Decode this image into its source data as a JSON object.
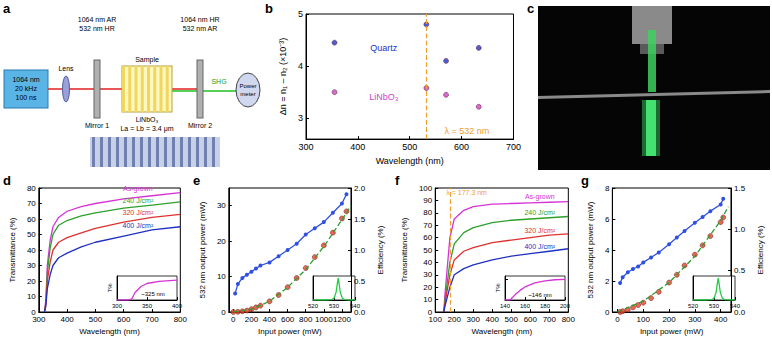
{
  "diagram": {
    "panel_label": "a",
    "laser": [
      "1064 nm",
      "20 kHz",
      "100 ns"
    ],
    "lens": "Lens",
    "mirror1": {
      "coating": [
        "1064 nm AR",
        "532 nm HR"
      ],
      "label": "Mirror 1"
    },
    "sample": {
      "label": "Sample",
      "material": "LiNbO₃",
      "period": "La = Lb = 3.4 μm"
    },
    "mirror2": {
      "coating": [
        "1064 nm HR",
        "532 nm AR"
      ],
      "label": "Mirror 2"
    },
    "beam": "SHG",
    "detector": "Power meter"
  },
  "photo": {
    "panel_label": "c"
  },
  "chart_data": [
    {
      "panel_label": "b",
      "type": "scatter",
      "grid": false,
      "x_label": "Wavelength (nm)",
      "y_label": "Δn = n₁ – n₂ (×10⁻³)",
      "xlim": [
        300,
        700
      ],
      "xticks": [
        300,
        400,
        500,
        600,
        700
      ],
      "ylim": [
        2.6,
        5
      ],
      "yticks": [
        3,
        4,
        5
      ],
      "series": [
        {
          "color": "#2233cc",
          "marker": "circle",
          "x": [
            355,
            532,
            570,
            633
          ],
          "values": [
            4.45,
            4.8,
            4.1,
            4.35
          ]
        },
        {
          "color": "#cc44cc",
          "marker": "circle",
          "x": [
            355,
            532,
            570,
            633
          ],
          "values": [
            3.5,
            3.58,
            3.45,
            3.22
          ]
        }
      ],
      "vlines": [
        {
          "x": 532,
          "color": "#f0a030"
        }
      ],
      "annotations": [
        {
          "text": "Quartz",
          "x": 450,
          "y": 4.35,
          "color": "#2233cc"
        },
        {
          "text": "LiNbO₃",
          "x": 450,
          "y": 3.4,
          "color": "#cc44cc"
        },
        {
          "text": "λ = 532 nm",
          "x": 610,
          "y": 2.75,
          "color": "#f0a030"
        }
      ]
    },
    {
      "panel_label": "d",
      "type": "line",
      "grid": false,
      "x_label": "Wavelength (nm)",
      "y_label": "Transmittance (%)",
      "xlim": [
        300,
        800
      ],
      "xticks": [
        300,
        400,
        500,
        600,
        700,
        800
      ],
      "ylim": [
        0,
        80
      ],
      "yticks": [
        0,
        10,
        20,
        30,
        40,
        50,
        60,
        70,
        80
      ],
      "series": [
        {
          "color": "#d633d6",
          "marker": "none",
          "line_style": "solid",
          "x": [
            320,
            325,
            330,
            340,
            350,
            370,
            400,
            450,
            500,
            600,
            700,
            800
          ],
          "values": [
            0,
            8,
            30,
            46,
            55,
            61,
            65,
            68,
            70,
            73,
            75,
            77
          ]
        },
        {
          "color": "#2ca02c",
          "marker": "none",
          "line_style": "solid",
          "x": [
            320,
            325,
            330,
            340,
            350,
            370,
            400,
            450,
            500,
            600,
            700,
            800
          ],
          "values": [
            0,
            6,
            25,
            41,
            50,
            56,
            59,
            62,
            64,
            67,
            69,
            71
          ]
        },
        {
          "color": "#e03030",
          "marker": "none",
          "line_style": "solid",
          "x": [
            320,
            325,
            330,
            340,
            350,
            370,
            400,
            450,
            500,
            600,
            700,
            800
          ],
          "values": [
            0,
            5,
            20,
            32,
            40,
            45,
            48,
            51,
            54,
            58,
            61,
            63
          ]
        },
        {
          "color": "#2030c0",
          "marker": "none",
          "line_style": "solid",
          "x": [
            320,
            325,
            330,
            340,
            350,
            370,
            400,
            450,
            500,
            600,
            700,
            800
          ],
          "values": [
            0,
            4,
            15,
            24,
            30,
            35,
            38,
            42,
            45,
            49,
            53,
            55
          ]
        }
      ],
      "annotations": [
        {
          "text": "As-grown",
          "x": 650,
          "y": 80,
          "color": "#d633d6"
        },
        {
          "text": "240 J/cm²",
          "x": 650,
          "y": 72,
          "color": "#2ca02c"
        },
        {
          "text": "320 J/cm²",
          "x": 650,
          "y": 64,
          "color": "#e03030"
        },
        {
          "text": "400 J/cm²",
          "x": 650,
          "y": 56,
          "color": "#2030c0"
        }
      ],
      "inset": {
        "type": "line",
        "y_label": "T%",
        "tick_labels": "x",
        "xlim": [
          300,
          400
        ],
        "xticks": [
          300,
          350,
          400
        ],
        "ylim": [
          0,
          80
        ],
        "yticks": [],
        "series": [
          {
            "color": "#d633d6",
            "marker": "none",
            "line_style": "solid",
            "x": [
              300,
              320,
              325,
              330,
              340,
              350,
              370,
              400
            ],
            "values": [
              0,
              0,
              5,
              25,
              45,
              55,
              62,
              66
            ]
          }
        ],
        "annotations": [
          {
            "text": "~325 nm",
            "x": 360,
            "y": 20,
            "color": "#000000"
          }
        ]
      }
    },
    {
      "panel_label": "e",
      "type": "scatter",
      "grid": false,
      "x_label": "Input power (mW)",
      "y_label": "532 nm output power (mW)",
      "y2_label": "Efficiency (%)",
      "xlim": [
        -50,
        1300
      ],
      "xticks": [
        0,
        200,
        400,
        600,
        800,
        1000,
        1200
      ],
      "ylim": [
        0,
        35
      ],
      "yticks": [
        0,
        10,
        20,
        30
      ],
      "y2lim": [
        0,
        2
      ],
      "y2ticks": [
        {
          "value": 0,
          "label": "0.0"
        },
        0.5,
        {
          "value": 1,
          "label": "1.0"
        },
        1.5,
        {
          "value": 2,
          "label": "2.0"
        }
      ],
      "series": [
        {
          "type": "line",
          "color": "#2e9e2e",
          "marker": "none",
          "line_style": "dashed",
          "x": [
            0,
            200,
            400,
            600,
            800,
            1000,
            1200,
            1300
          ],
          "values": [
            0,
            0.8,
            3,
            7,
            12,
            18.5,
            26,
            30
          ]
        },
        {
          "type": "scatter",
          "color": "#e8402a",
          "marker": "circle",
          "x": [
            0,
            50,
            100,
            150,
            200,
            250,
            300,
            400,
            500,
            600,
            700,
            800,
            900,
            1000,
            1100,
            1200,
            1250
          ],
          "values": [
            0,
            0.05,
            0.2,
            0.4,
            0.8,
            1.3,
            1.8,
            3,
            4.8,
            7,
            9.6,
            12.4,
            15.5,
            18.8,
            22.4,
            26.4,
            28.4
          ]
        },
        {
          "type": "line",
          "axis": "y2",
          "color": "#3050e0",
          "marker": "circle",
          "line_style": "solid",
          "x": [
            20,
            50,
            100,
            150,
            200,
            250,
            300,
            400,
            500,
            600,
            700,
            800,
            900,
            1000,
            1100,
            1200,
            1250
          ],
          "values": [
            0.3,
            0.45,
            0.55,
            0.6,
            0.65,
            0.7,
            0.75,
            0.8,
            0.9,
            1,
            1.1,
            1.25,
            1.35,
            1.45,
            1.6,
            1.75,
            1.9
          ]
        }
      ],
      "inset": {
        "type": "line",
        "tick_labels": "x",
        "xlim": [
          520,
          540
        ],
        "xticks": [
          520,
          530,
          540
        ],
        "ylim": [
          0,
          1.1
        ],
        "yticks": [],
        "series": [
          {
            "color": "#22cc44",
            "marker": "none",
            "line_style": "solid",
            "x": [
              520,
              526,
              529,
              530,
              531,
              531.5,
              532,
              532.5,
              533,
              534,
              535,
              538,
              540
            ],
            "values": [
              0,
              0,
              0.02,
              0.08,
              0.35,
              0.7,
              1,
              0.7,
              0.35,
              0.08,
              0.02,
              0,
              0
            ]
          }
        ]
      }
    },
    {
      "panel_label": "f",
      "type": "line",
      "grid": false,
      "x_label": "Wavelength (nm)",
      "y_label": "Transmittance (%)",
      "xlim": [
        100,
        800
      ],
      "xticks": [
        100,
        200,
        300,
        400,
        500,
        600,
        700,
        800
      ],
      "ylim": [
        0,
        100
      ],
      "yticks": [
        0,
        10,
        20,
        30,
        40,
        50,
        60,
        70,
        80,
        90,
        100
      ],
      "series": [
        {
          "color": "#d633d6",
          "marker": "none",
          "line_style": "solid",
          "x": [
            145,
            150,
            160,
            177,
            200,
            250,
            300,
            400,
            500,
            600,
            700,
            800
          ],
          "values": [
            0,
            12,
            30,
            60,
            75,
            82,
            85,
            87,
            87.5,
            88,
            88.5,
            89
          ]
        },
        {
          "color": "#2ca02c",
          "marker": "none",
          "line_style": "solid",
          "x": [
            145,
            150,
            160,
            177,
            200,
            250,
            300,
            400,
            500,
            600,
            700,
            800
          ],
          "values": [
            0,
            8,
            20,
            40,
            55,
            64,
            68,
            72,
            74,
            75,
            76,
            77
          ]
        },
        {
          "color": "#e03030",
          "marker": "none",
          "line_style": "solid",
          "x": [
            145,
            150,
            160,
            177,
            200,
            250,
            300,
            400,
            500,
            600,
            700,
            800
          ],
          "values": [
            0,
            6,
            15,
            30,
            42,
            49,
            52,
            56,
            58,
            60,
            62,
            63
          ]
        },
        {
          "color": "#2030c0",
          "marker": "none",
          "line_style": "solid",
          "x": [
            145,
            150,
            160,
            177,
            200,
            250,
            300,
            400,
            500,
            600,
            700,
            800
          ],
          "values": [
            0,
            4,
            10,
            20,
            30,
            35,
            38,
            42,
            45,
            47,
            49,
            51
          ]
        }
      ],
      "vlines": [
        {
          "x": 177.3,
          "color": "#f0a030"
        }
      ],
      "annotations": [
        {
          "text": "λ = 177.3 nm",
          "x": 265,
          "y": 96,
          "color": "#f0a030"
        },
        {
          "text": "As-grown",
          "x": 650,
          "y": 93,
          "color": "#d633d6"
        },
        {
          "text": "240 J/cm²",
          "x": 650,
          "y": 80,
          "color": "#2ca02c"
        },
        {
          "text": "320 J/cm²",
          "x": 650,
          "y": 66,
          "color": "#e03030"
        },
        {
          "text": "400 J/cm²",
          "x": 650,
          "y": 53,
          "color": "#2030c0"
        }
      ],
      "inset": {
        "type": "line",
        "y_label": "T%",
        "tick_labels": "x",
        "xlim": [
          140,
          200
        ],
        "xticks": [
          140,
          160,
          180,
          200
        ],
        "ylim": [
          0,
          70
        ],
        "yticks": [
          0,
          60
        ],
        "series": [
          {
            "color": "#d633d6",
            "marker": "none",
            "line_style": "solid",
            "x": [
              140,
              145,
              146,
              150,
              155,
              160,
              170,
              180,
              190,
              200
            ],
            "values": [
              0,
              0,
              3,
              15,
              28,
              38,
              50,
              56,
              59,
              60
            ]
          }
        ],
        "annotations": [
          {
            "text": "~146 nm",
            "x": 175,
            "y": 15,
            "color": "#000000"
          }
        ]
      }
    },
    {
      "panel_label": "g",
      "type": "scatter",
      "grid": false,
      "x_label": "Input power (mW)",
      "y_label": "532 nm output power (mW)",
      "y2_label": "Efficiency (%)",
      "xlim": [
        -20,
        440
      ],
      "xticks": [
        0,
        100,
        200,
        300,
        400
      ],
      "ylim": [
        0,
        8
      ],
      "yticks": [
        0,
        2,
        4,
        6,
        8
      ],
      "y2lim": [
        0,
        1.5
      ],
      "y2ticks": [
        {
          "value": 0,
          "label": "0.0"
        },
        0.5,
        {
          "value": 1,
          "label": "1.0"
        },
        1.5
      ],
      "series": [
        {
          "type": "line",
          "color": "#2e9e2e",
          "marker": "none",
          "line_style": "dashed",
          "x": [
            0,
            100,
            200,
            300,
            400,
            430
          ],
          "values": [
            0,
            0.7,
            1.9,
            3.6,
            5.9,
            6.8
          ]
        },
        {
          "type": "scatter",
          "color": "#e8402a",
          "marker": "circle",
          "x": [
            10,
            20,
            40,
            60,
            80,
            100,
            130,
            160,
            200,
            230,
            260,
            300,
            330,
            360,
            400,
            410
          ],
          "values": [
            0,
            0.05,
            0.15,
            0.3,
            0.45,
            0.6,
            0.9,
            1.3,
            1.9,
            2.4,
            3,
            3.7,
            4.3,
            4.9,
            5.8,
            6.1
          ]
        },
        {
          "type": "line",
          "axis": "y2",
          "color": "#3050e0",
          "marker": "circle",
          "line_style": "solid",
          "x": [
            10,
            20,
            40,
            60,
            80,
            100,
            130,
            160,
            200,
            230,
            260,
            300,
            330,
            360,
            400,
            410
          ],
          "values": [
            0.35,
            0.42,
            0.48,
            0.52,
            0.55,
            0.6,
            0.66,
            0.72,
            0.82,
            0.9,
            0.98,
            1.08,
            1.15,
            1.22,
            1.3,
            1.37
          ]
        }
      ],
      "inset": {
        "type": "line",
        "tick_labels": "x",
        "xlim": [
          520,
          540
        ],
        "xticks": [
          520,
          530,
          540
        ],
        "ylim": [
          0,
          1.1
        ],
        "yticks": [],
        "series": [
          {
            "color": "#22cc44",
            "marker": "none",
            "line_style": "solid",
            "x": [
              520,
              526,
              529,
              530,
              531,
              531.5,
              532,
              532.5,
              533,
              534,
              535,
              538,
              540
            ],
            "values": [
              0,
              0,
              0.02,
              0.08,
              0.35,
              0.7,
              1,
              0.7,
              0.35,
              0.08,
              0.02,
              0,
              0
            ]
          }
        ]
      }
    }
  ]
}
